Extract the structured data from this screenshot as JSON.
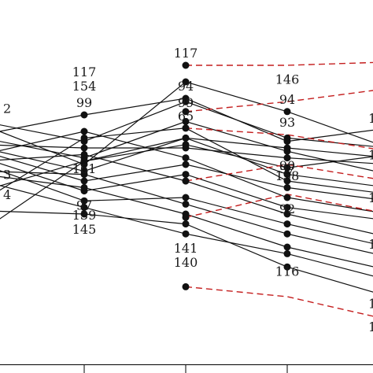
{
  "chart_data": {
    "type": "line",
    "title": "",
    "xlabel": "",
    "ylabel": "",
    "x": [
      0,
      1,
      2,
      3,
      4
    ],
    "ylim": [
      0,
      1
    ],
    "series_color": "#111111",
    "highlight_color": "#c41e1e",
    "series": [
      {
        "values": [
          0.68,
          0.62,
          0.74,
          0.63,
          0.6
        ]
      },
      {
        "values": [
          0.67,
          0.55,
          0.8,
          0.71,
          0.6
        ]
      },
      {
        "values": [
          0.64,
          0.7,
          0.75,
          0.62,
          0.66
        ]
      },
      {
        "values": [
          0.63,
          0.57,
          0.68,
          0.59,
          0.52
        ]
      },
      {
        "values": [
          0.61,
          0.6,
          0.6,
          0.57,
          0.55
        ]
      },
      {
        "values": [
          0.6,
          0.53,
          0.63,
          0.52,
          0.48
        ]
      },
      {
        "values": [
          0.59,
          0.5,
          0.55,
          0.48,
          0.44
        ]
      },
      {
        "values": [
          0.58,
          0.65,
          0.57,
          0.45,
          0.4
        ]
      },
      {
        "values": [
          0.57,
          0.47,
          0.52,
          0.42,
          0.38
        ]
      },
      {
        "values": [
          0.56,
          0.58,
          0.5,
          0.4,
          0.33
        ]
      },
      {
        "values": [
          0.55,
          0.44,
          0.45,
          0.37,
          0.3
        ]
      },
      {
        "values": [
          0.53,
          0.52,
          0.43,
          0.34,
          0.27
        ]
      },
      {
        "values": [
          0.52,
          0.48,
          0.4,
          0.3,
          0.23
        ]
      },
      {
        "values": [
          0.5,
          0.42,
          0.34,
          0.28,
          0.2
        ]
      },
      {
        "values": [
          0.47,
          0.56,
          0.61,
          0.54,
          0.58
        ]
      },
      {
        "values": [
          0.44,
          0.63,
          0.66,
          0.5,
          0.46
        ]
      },
      {
        "values": [
          0.41,
          0.4,
          0.37,
          0.24,
          0.15
        ]
      },
      {
        "values": [
          0.35,
          0.56,
          0.63,
          0.6,
          0.57
        ]
      }
    ],
    "highlighted": [
      {
        "values": [
          0.85,
          0.85,
          0.86
        ]
      },
      {
        "values": [
          0.71,
          0.74,
          0.78
        ]
      },
      {
        "values": [
          0.66,
          0.64,
          0.59
        ]
      },
      {
        "values": [
          0.5,
          0.55,
          0.5
        ]
      },
      {
        "values": [
          0.39,
          0.46,
          0.4
        ]
      },
      {
        "values": [
          0.18,
          0.15,
          0.08
        ]
      }
    ],
    "point_labels": [
      {
        "text": "117",
        "x": 2,
        "y": 0.85,
        "pos": "above"
      },
      {
        "text": "94",
        "x": 2,
        "y": 0.75,
        "pos": "above"
      },
      {
        "text": "99",
        "x": 2,
        "y": 0.7,
        "pos": "above"
      },
      {
        "text": "65",
        "x": 2,
        "y": 0.66,
        "pos": "above"
      },
      {
        "text": "141",
        "x": 2,
        "y": 0.34,
        "pos": "below"
      },
      {
        "text": "140",
        "x": 2,
        "y": 0.34,
        "pos": "below2"
      },
      {
        "text": "117",
        "x": 1,
        "y": 0.75,
        "pos": "above2"
      },
      {
        "text": "154",
        "x": 1,
        "y": 0.75,
        "pos": "above"
      },
      {
        "text": "99",
        "x": 1,
        "y": 0.7,
        "pos": "above"
      },
      {
        "text": "161",
        "x": 1,
        "y": 0.5,
        "pos": "above"
      },
      {
        "text": "97",
        "x": 1,
        "y": 0.47,
        "pos": "below"
      },
      {
        "text": "139",
        "x": 1,
        "y": 0.44,
        "pos": "below"
      },
      {
        "text": "145",
        "x": 1,
        "y": 0.44,
        "pos": "below2"
      },
      {
        "text": "146",
        "x": 3,
        "y": 0.77,
        "pos": "above"
      },
      {
        "text": "94",
        "x": 3,
        "y": 0.71,
        "pos": "above"
      },
      {
        "text": "93",
        "x": 3,
        "y": 0.64,
        "pos": "above"
      },
      {
        "text": "90",
        "x": 3,
        "y": 0.59,
        "pos": "below"
      },
      {
        "text": "158",
        "x": 3,
        "y": 0.56,
        "pos": "below"
      },
      {
        "text": "97",
        "x": 3,
        "y": 0.5,
        "pos": "above"
      },
      {
        "text": "92",
        "x": 3,
        "y": 0.46,
        "pos": "below"
      },
      {
        "text": "116",
        "x": 3,
        "y": 0.27,
        "pos": "below"
      },
      {
        "text": "2",
        "x": 0,
        "y": 0.72,
        "pos": "right"
      },
      {
        "text": "3",
        "x": 0,
        "y": 0.52,
        "pos": "right"
      },
      {
        "text": "4",
        "x": 0,
        "y": 0.46,
        "pos": "right"
      },
      {
        "text": "1",
        "x": 4,
        "y": 0.69,
        "pos": "right"
      },
      {
        "text": "1",
        "x": 4,
        "y": 0.58,
        "pos": "right"
      },
      {
        "text": "1",
        "x": 4,
        "y": 0.45,
        "pos": "right"
      },
      {
        "text": "1",
        "x": 4,
        "y": 0.31,
        "pos": "right"
      },
      {
        "text": "1",
        "x": 4,
        "y": 0.13,
        "pos": "right"
      },
      {
        "text": "1",
        "x": 4,
        "y": 0.06,
        "pos": "right"
      }
    ],
    "legend": "none",
    "grid": false
  }
}
